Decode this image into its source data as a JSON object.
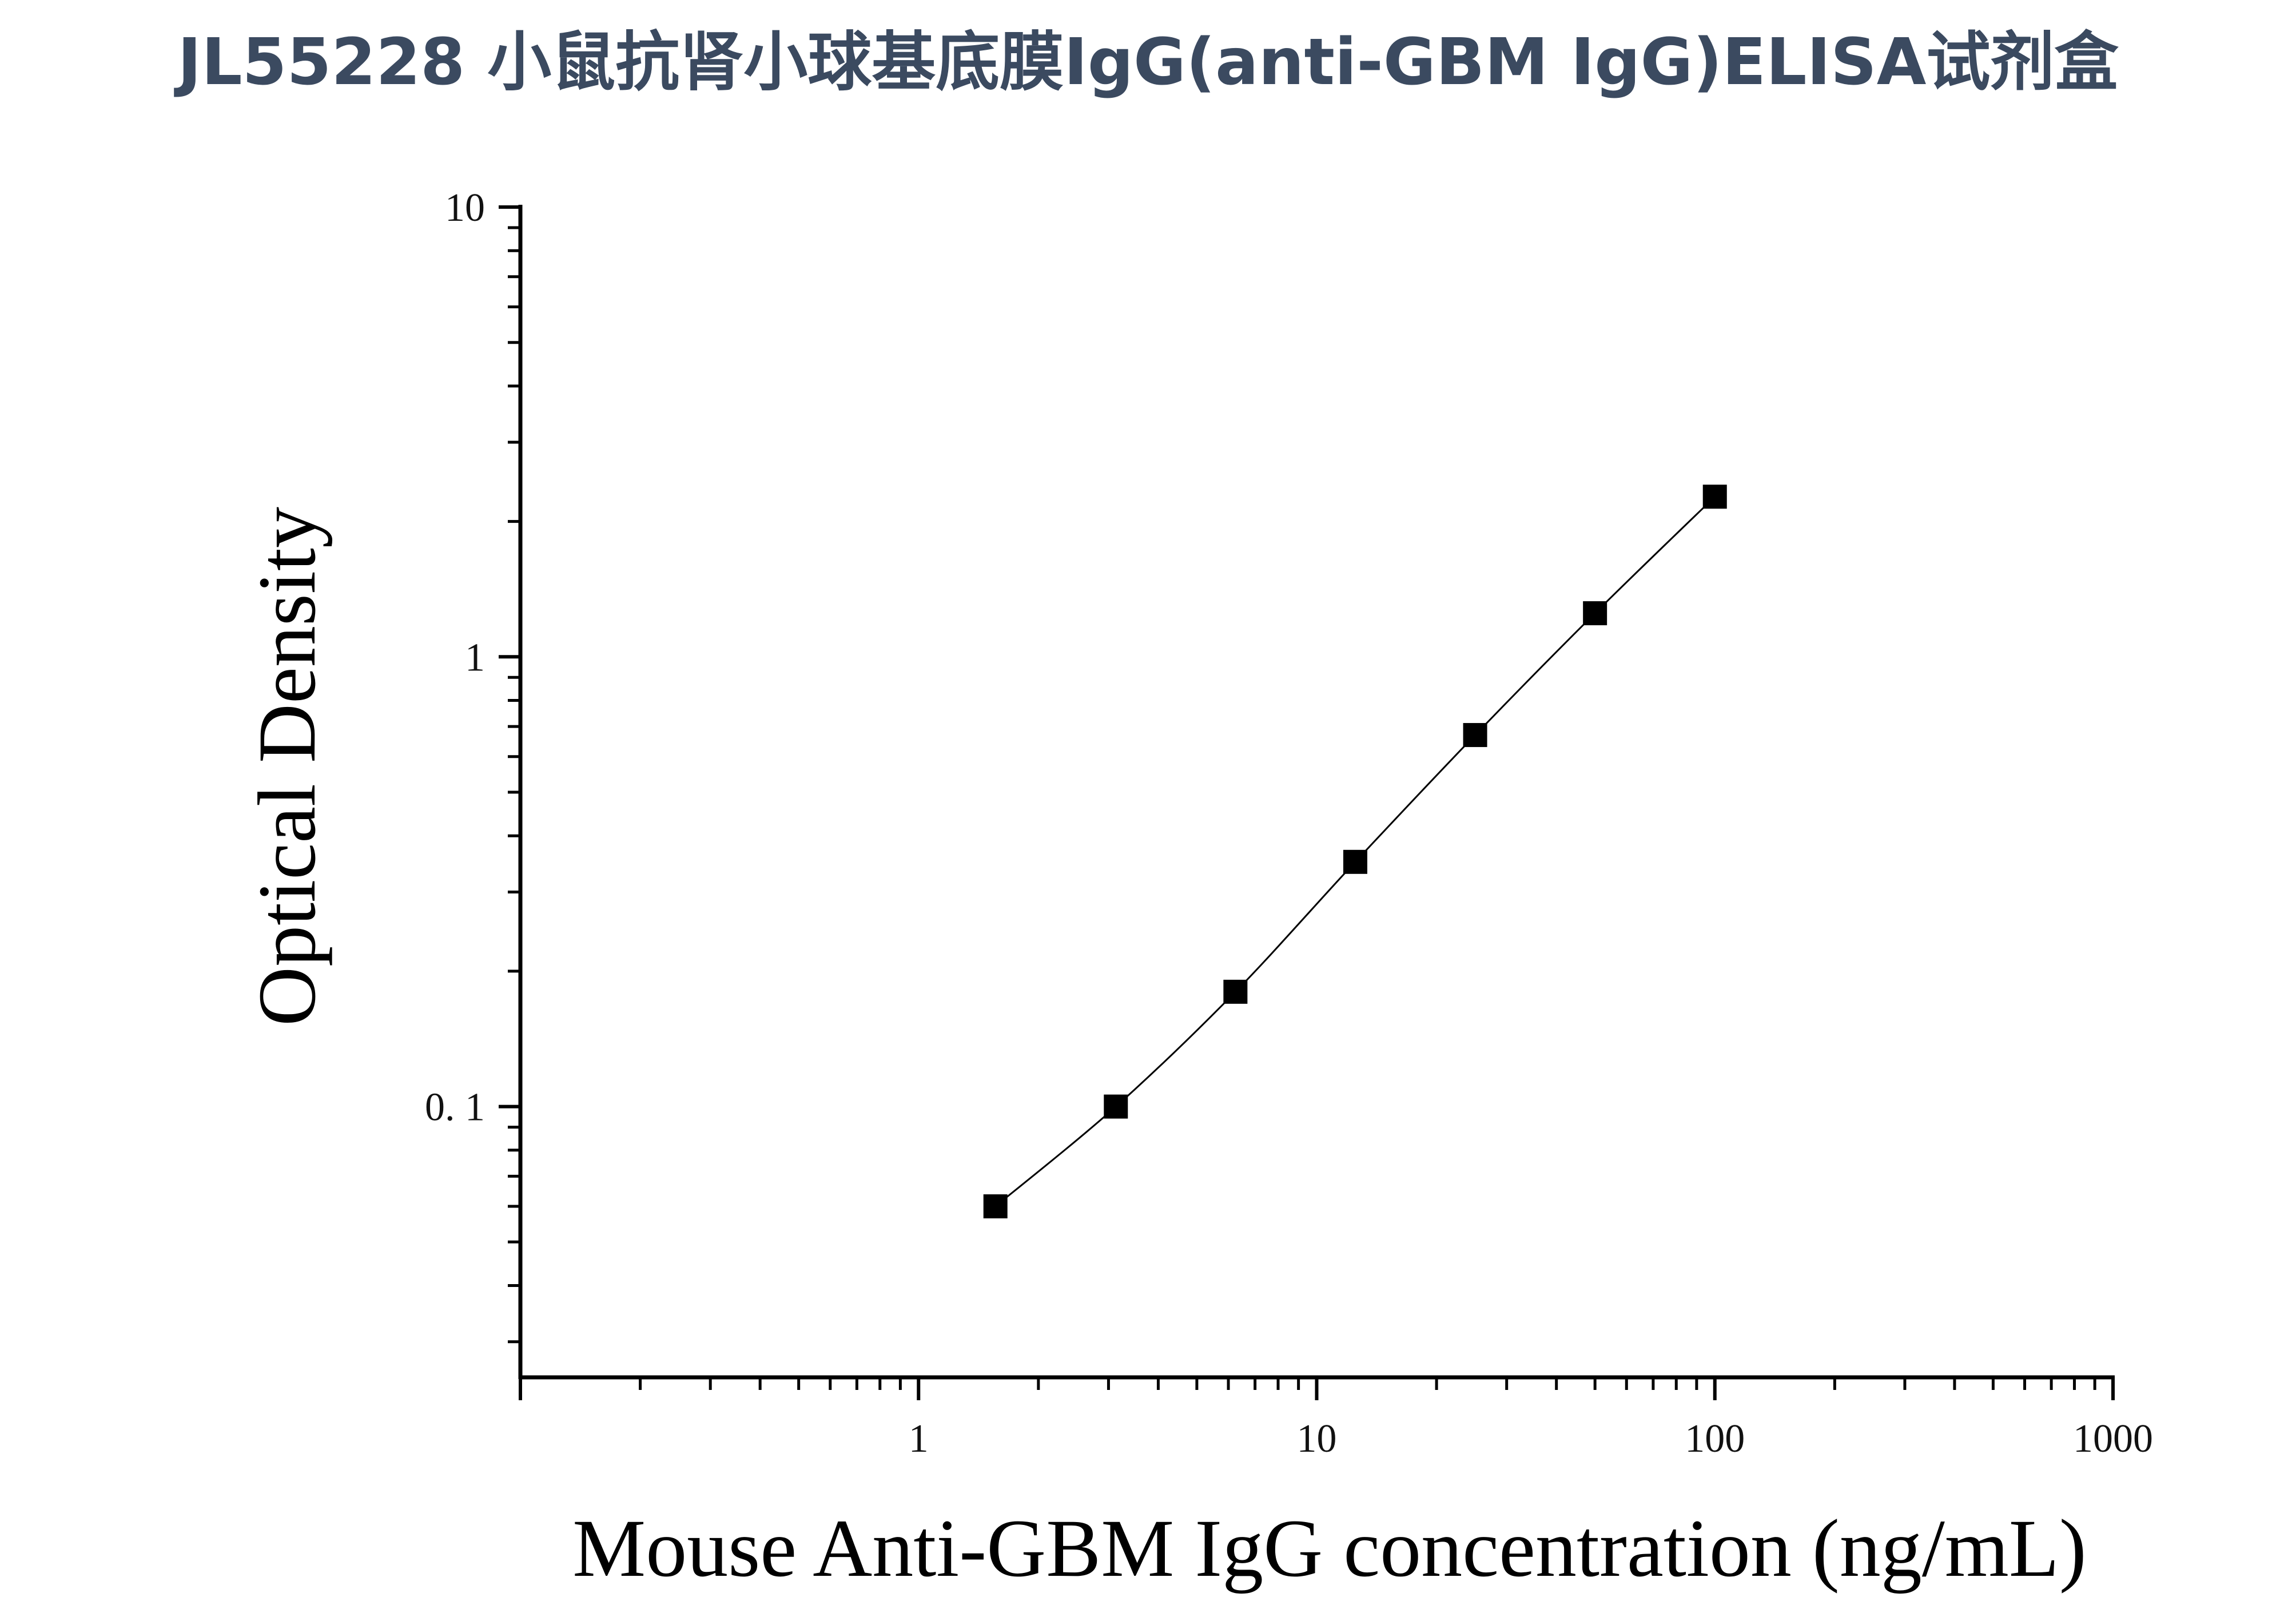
{
  "page": {
    "title": "JL55228 小鼠抗肾小球基底膜IgG(anti-GBM IgG)ELISA试剂盒"
  },
  "chart_data": {
    "type": "line",
    "title": "JL55228 小鼠抗肾小球基底膜IgG(anti-GBM IgG)ELISA试剂盒",
    "xlabel": "Mouse Anti-GBM IgG concentration (ng/mL)",
    "ylabel": "Optical Density",
    "x_scale": "log",
    "y_scale": "log",
    "xlim": [
      0.1,
      1000
    ],
    "ylim": [
      0.025,
      10
    ],
    "x_ticks": [
      {
        "value": 1,
        "label": "1"
      },
      {
        "value": 10,
        "label": "10"
      },
      {
        "value": 100,
        "label": "100"
      },
      {
        "value": 1000,
        "label": "1000"
      }
    ],
    "y_ticks": [
      {
        "value": 0.1,
        "label": "0. 1"
      },
      {
        "value": 1,
        "label": "1"
      },
      {
        "value": 10,
        "label": "10"
      }
    ],
    "grid": false,
    "marker": "square",
    "series": [
      {
        "x": [
          1.56,
          3.13,
          6.25,
          12.5,
          25,
          50,
          100
        ],
        "y": [
          0.06,
          0.1,
          0.18,
          0.35,
          0.67,
          1.25,
          2.27
        ]
      }
    ],
    "colors": {
      "title": "#3b4a60",
      "line": "#000000",
      "marker": "#000000",
      "axis": "#000000"
    }
  }
}
